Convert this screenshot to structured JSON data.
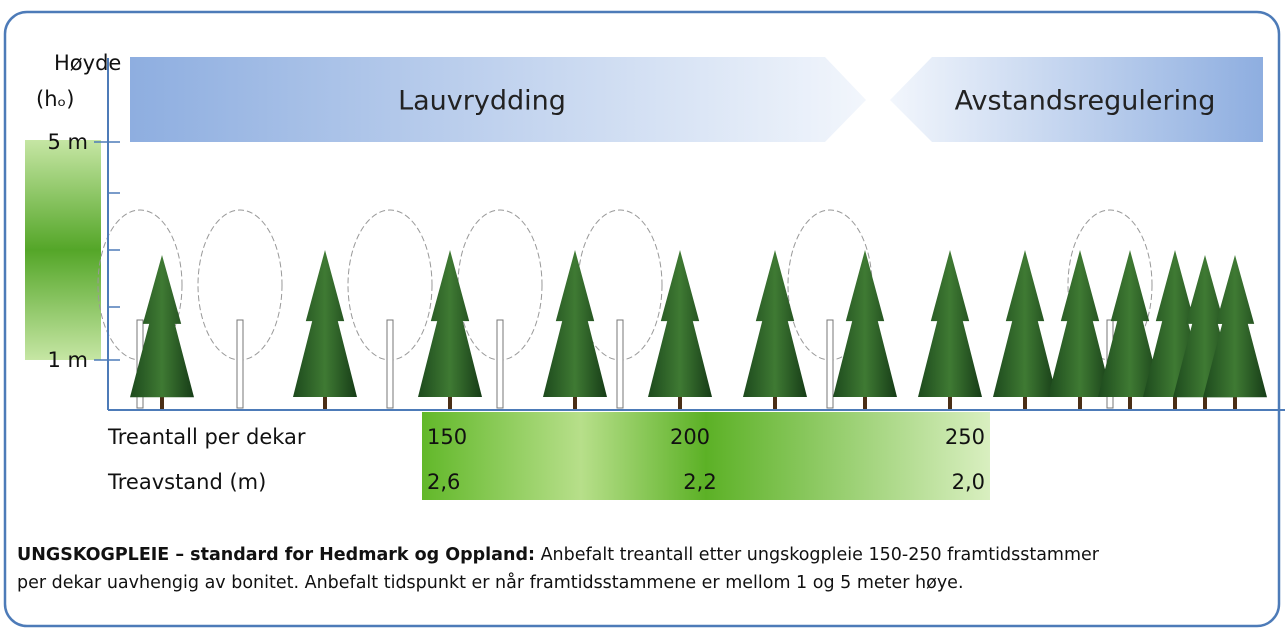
{
  "axis": {
    "title": "Høyde",
    "unit": "(hₒ)",
    "top_label": "5 m",
    "bottom_label": "1 m"
  },
  "phases": [
    "Lauvrydding",
    "Avstandsregulering"
  ],
  "table": {
    "rows": [
      {
        "label": "Treantall per dekar",
        "values": [
          "150",
          "200",
          "250"
        ]
      },
      {
        "label": "Treavstand (m)",
        "values": [
          "2,6",
          "2,2",
          "2,0"
        ]
      }
    ]
  },
  "caption": {
    "bold": "UNGSKOGPLEIE – standard for Hedmark og Oppland:",
    "lines": [
      "Anbefalt treantall etter ungskogpleie 150-250 framtidsstammer",
      "per dekar uavhengig av bonitet.  Anbefalt tidspunkt er når framtidsstammene er mellom 1 og 5 meter høye."
    ]
  }
}
